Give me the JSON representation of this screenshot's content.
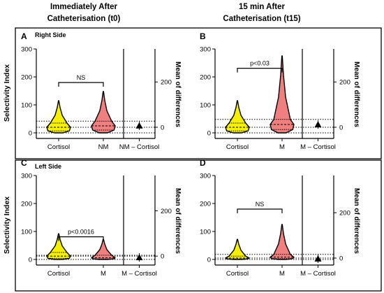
{
  "header": {
    "col_left": [
      "Immediately After",
      "Catheterisation (t0)"
    ],
    "col_right": [
      "15 min After",
      "Catheterisation (t15)"
    ]
  },
  "rows": [
    {
      "ylabel": "Selectivity Index",
      "side": "Right Side"
    },
    {
      "ylabel": "Selectivity Index",
      "side": "Left Side"
    }
  ],
  "colors": {
    "cortisol": "#f4f000",
    "metanephrine": "#f08080",
    "outline": "#000000"
  },
  "chart_data": [
    {
      "type": "violin",
      "panel": "A",
      "ylim": [
        0,
        300
      ],
      "yticks": [
        0,
        100,
        200,
        300
      ],
      "y2label": "Mean of differences",
      "y2ticks": [
        0,
        200
      ],
      "categories": [
        "Cortisol",
        "NM"
      ],
      "diff_category": "NM – Cortisol",
      "series": [
        {
          "category": "Cortisol",
          "max": 115,
          "median": 20,
          "q1": 7,
          "q3": 35
        },
        {
          "category": "NM",
          "max": 148,
          "median": 25,
          "q1": 10,
          "q3": 42
        }
      ],
      "mean_difference": 7,
      "significance": {
        "label": "NS",
        "between": [
          "Cortisol",
          "NM"
        ]
      }
    },
    {
      "type": "violin",
      "panel": "B",
      "ylim": [
        0,
        300
      ],
      "yticks": [
        0,
        100,
        200,
        300
      ],
      "y2label": "Mean of differences",
      "y2ticks": [
        0,
        200
      ],
      "categories": [
        "Cortisol",
        "M"
      ],
      "diff_category": "M – Cortisol",
      "series": [
        {
          "category": "Cortisol",
          "max": 115,
          "median": 20,
          "q1": 7,
          "q3": 35
        },
        {
          "category": "M",
          "max": 275,
          "median": 30,
          "q1": 12,
          "q3": 48
        }
      ],
      "mean_difference": 12,
      "significance": {
        "label": "p<0.03",
        "between": [
          "Cortisol",
          "M"
        ]
      }
    },
    {
      "type": "violin",
      "panel": "C",
      "ylim": [
        0,
        300
      ],
      "yticks": [
        0,
        100,
        200,
        300
      ],
      "y2label": "Mean of differences",
      "y2ticks": [
        0,
        200
      ],
      "categories": [
        "Cortisol",
        "M"
      ],
      "diff_category": "M – Cortisol",
      "series": [
        {
          "category": "Cortisol",
          "max": 92,
          "median": 12,
          "q1": 4,
          "q3": 25
        },
        {
          "category": "M",
          "max": 72,
          "median": 6,
          "q1": 2,
          "q3": 15
        }
      ],
      "mean_difference": -6,
      "significance": {
        "label": "p<0.0016",
        "between": [
          "Cortisol",
          "M"
        ]
      }
    },
    {
      "type": "violin",
      "panel": "D",
      "ylim": [
        0,
        300
      ],
      "yticks": [
        0,
        100,
        200,
        300
      ],
      "y2label": "Mean of differences",
      "y2ticks": [
        0,
        200
      ],
      "categories": [
        "Cortisol",
        "M"
      ],
      "diff_category": "M – Cortisol",
      "series": [
        {
          "category": "Cortisol",
          "max": 72,
          "median": 5,
          "q1": 2,
          "q3": 12
        },
        {
          "category": "M",
          "max": 125,
          "median": 8,
          "q1": 3,
          "q3": 18
        }
      ],
      "mean_difference": -3,
      "significance": {
        "label": "NS",
        "between": [
          "Cortisol",
          "M"
        ]
      }
    }
  ]
}
